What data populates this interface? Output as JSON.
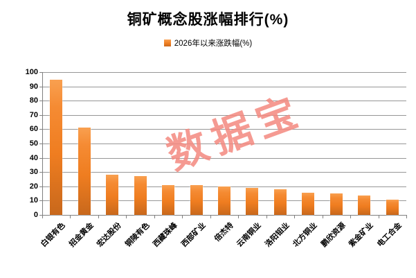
{
  "title": "铜矿概念股涨幅排行(%)",
  "legend": {
    "label": "2026年以来涨跌幅(%)",
    "swatch": "orange-gradient-square"
  },
  "watermark": "数据宝",
  "colors": {
    "bar_gradient_top": "#F9A050",
    "bar_gradient_mid": "#EF7D20",
    "bar_gradient_bottom": "#C8681C",
    "gridline": "#969696",
    "axis": "#7f7f7f",
    "watermark": "#F4897F",
    "text": "#000000",
    "background": "#ffffff"
  },
  "chart_data": {
    "type": "bar",
    "title": "铜矿概念股涨幅排行(%)",
    "legend_entries": [
      "2026年以来涨跌幅(%)"
    ],
    "legend_position": "top",
    "categories": [
      "白银有色",
      "招金黄金",
      "宏达股份",
      "铜陵有色",
      "西藏珠峰",
      "西部矿业",
      "倍杰特",
      "云南铜业",
      "洛阳钼业",
      "北方铜业",
      "鹏欣资源",
      "紫金矿业",
      "电工合金"
    ],
    "values": [
      94.5,
      61,
      28,
      27,
      21,
      21,
      20,
      19,
      18,
      15.5,
      15,
      13.5,
      10.5
    ],
    "xlabel": "",
    "ylabel": "",
    "ylim": [
      0,
      100
    ],
    "ytick_interval": 10,
    "yticks": [
      0,
      10,
      20,
      30,
      40,
      50,
      60,
      70,
      80,
      90,
      100
    ],
    "grid": true,
    "x_label_rotation_deg": 45
  }
}
